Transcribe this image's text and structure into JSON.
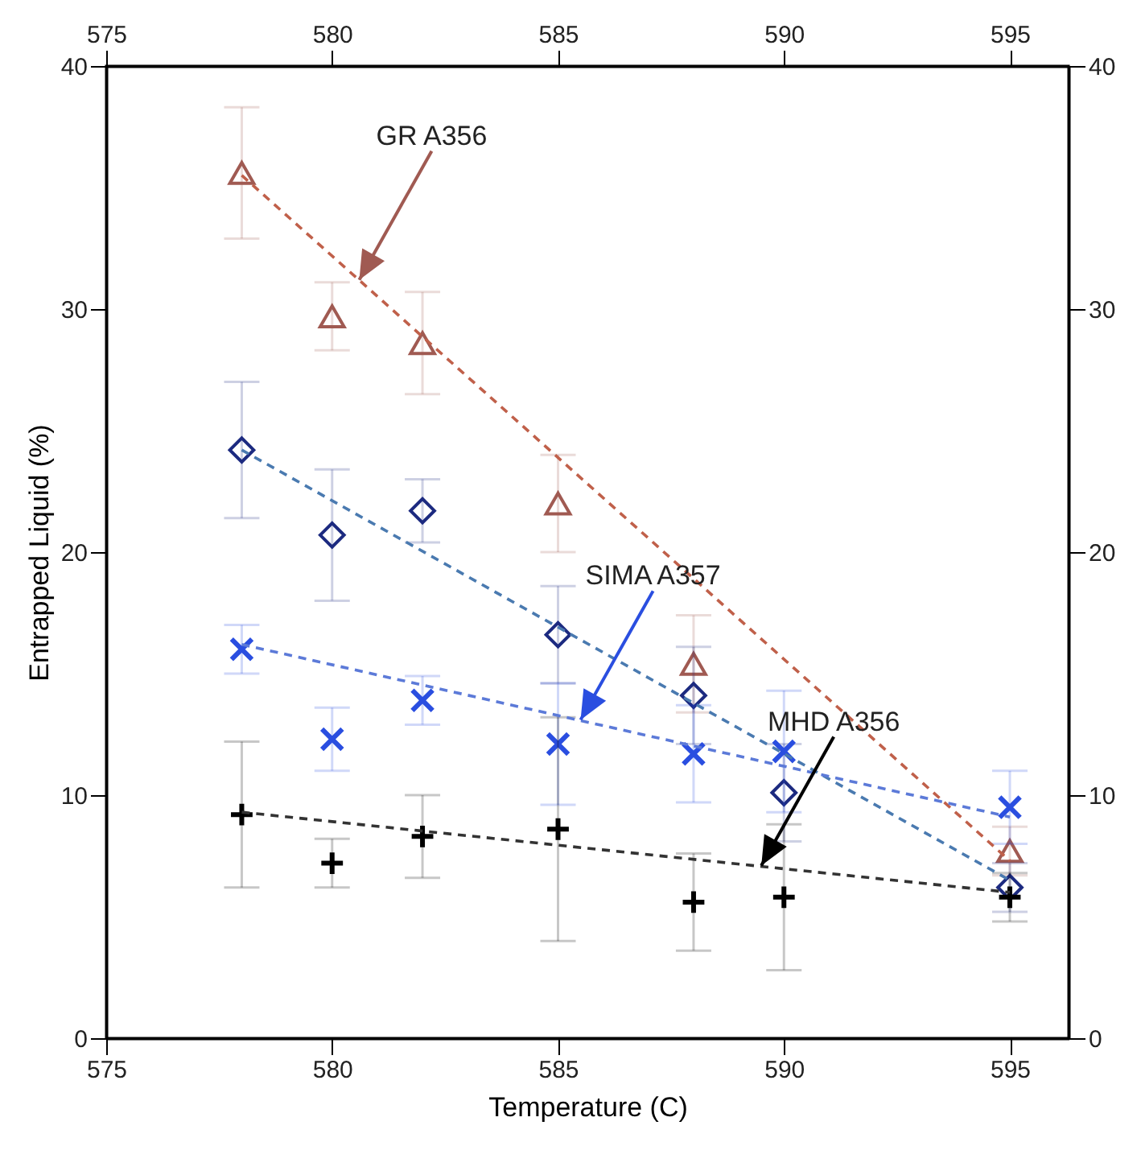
{
  "chart_data": {
    "type": "scatter",
    "xlabel": "Temperature (C)",
    "ylabel": "Entrapped Liquid (%)",
    "xlim": [
      575,
      596.3
    ],
    "xticks": [
      575,
      580,
      585,
      590,
      595
    ],
    "x2lim": [
      575,
      596.3
    ],
    "x2ticks": [
      575,
      580,
      585,
      590,
      595
    ],
    "ylim": [
      0,
      40
    ],
    "yticks": [
      0,
      10,
      20,
      30,
      40
    ],
    "y2lim": [
      0,
      40
    ],
    "y2ticks": [
      0,
      10,
      20,
      30,
      40
    ],
    "grid": false,
    "series": [
      {
        "type": "scatter",
        "marker": "triangle",
        "color": "#a05a52",
        "x": [
          578,
          580,
          582,
          585,
          588,
          595
        ],
        "values": [
          35.6,
          29.7,
          28.6,
          22.0,
          15.4,
          7.7
        ],
        "errors": [
          2.7,
          1.4,
          2.1,
          2,
          2,
          1
        ]
      },
      {
        "type": "scatter",
        "marker": "diamond",
        "color": "#1c2a80",
        "x": [
          578,
          580,
          582,
          585,
          588,
          590,
          595
        ],
        "values": [
          24.2,
          20.7,
          21.7,
          16.6,
          14.1,
          10.1,
          6.2
        ],
        "errors": [
          2.8,
          2.7,
          1.3,
          2,
          2,
          2,
          1
        ]
      },
      {
        "type": "scatter",
        "marker": "x",
        "color": "#2a4ee0",
        "x": [
          578,
          580,
          582,
          585,
          588,
          590,
          595
        ],
        "values": [
          16.0,
          12.3,
          13.9,
          12.1,
          11.7,
          11.8,
          9.5
        ],
        "errors": [
          1,
          1.3,
          1,
          2.5,
          2,
          2.5,
          1.5
        ]
      },
      {
        "type": "scatter",
        "marker": "cross",
        "color": "#000000",
        "x": [
          578,
          580,
          582,
          585,
          588,
          590,
          595
        ],
        "values": [
          9.2,
          7.2,
          8.3,
          8.6,
          5.6,
          5.8,
          5.8
        ],
        "errors": [
          3,
          1,
          1.7,
          4.6,
          2,
          3,
          1
        ]
      },
      {
        "type": "line",
        "line_style": "dashed",
        "marker": "none",
        "color": "#c0604a",
        "x": [
          578,
          595
        ],
        "values": [
          35.5,
          7.3
        ]
      },
      {
        "type": "line",
        "line_style": "dashed",
        "marker": "none",
        "color": "#4a7ab0",
        "x": [
          578,
          595
        ],
        "values": [
          24.2,
          6.5
        ]
      },
      {
        "type": "line",
        "line_style": "dashed",
        "marker": "none",
        "color": "#5c7ad8",
        "x": [
          578,
          595
        ],
        "values": [
          16.2,
          9.1
        ]
      },
      {
        "type": "line",
        "line_style": "dashed",
        "marker": "none",
        "color": "#333333",
        "x": [
          578,
          595
        ],
        "values": [
          9.3,
          6.0
        ]
      }
    ],
    "annotations": [
      {
        "text": "GR A356",
        "x": 580.6,
        "y": 31.2
      },
      {
        "text": "SIMA A357",
        "x": 585.5,
        "y": 13.1
      },
      {
        "text": "MHD A356",
        "x": 589.5,
        "y": 7.1
      }
    ]
  }
}
